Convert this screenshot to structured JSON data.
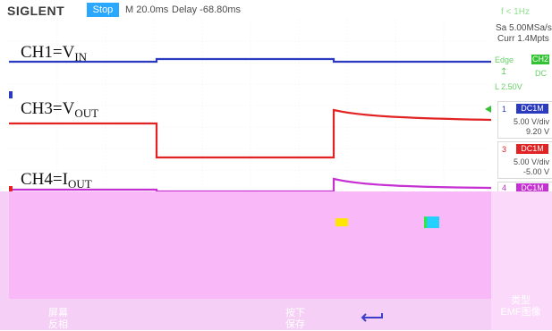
{
  "header": {
    "brand": "SIGLENT",
    "run_state": "Stop",
    "timebase": "M 20.0ms",
    "delay": "Delay -68.80ms",
    "frequency": "f < 1Hz"
  },
  "acquisition": {
    "sample_rate": "Sa 5.00MSa/s",
    "memory": "Curr 1.4Mpts"
  },
  "trigger": {
    "type": "Edge",
    "source": "CH2",
    "slope_symbol": "↥",
    "coupling": "DC",
    "level": "L 2.50V"
  },
  "channels": [
    {
      "number": "1",
      "coupling": "DC1M",
      "scale": "5.00 V/div",
      "offset": "9.20 V",
      "color": "#2a3bbf"
    },
    {
      "number": "3",
      "coupling": "DC1M",
      "scale": "5.00 V/div",
      "offset": "-5.00 V",
      "color": "#e12323"
    },
    {
      "number": "4",
      "coupling": "DC1M",
      "color": "#c62fd2"
    }
  ],
  "plot_labels": {
    "ch1": {
      "main": "CH1=V",
      "sub": "IN"
    },
    "ch3": {
      "main": "CH3=V",
      "sub": "OUT"
    },
    "ch4": {
      "main": "CH4=I",
      "sub": "OUT"
    }
  },
  "softkeys": {
    "screen_invert": [
      "屏幕",
      "反相"
    ],
    "press_save": [
      "按下",
      "保存"
    ],
    "type_emf": [
      "类型",
      "EMF图像"
    ]
  },
  "colors": {
    "ch1": "#2a3bbf",
    "ch3": "#e12323",
    "ch4": "#c62fd2",
    "trigger": "#31c331",
    "run_state_bg": "#2aa7ff",
    "trigger_marker": "#f0a340"
  }
}
